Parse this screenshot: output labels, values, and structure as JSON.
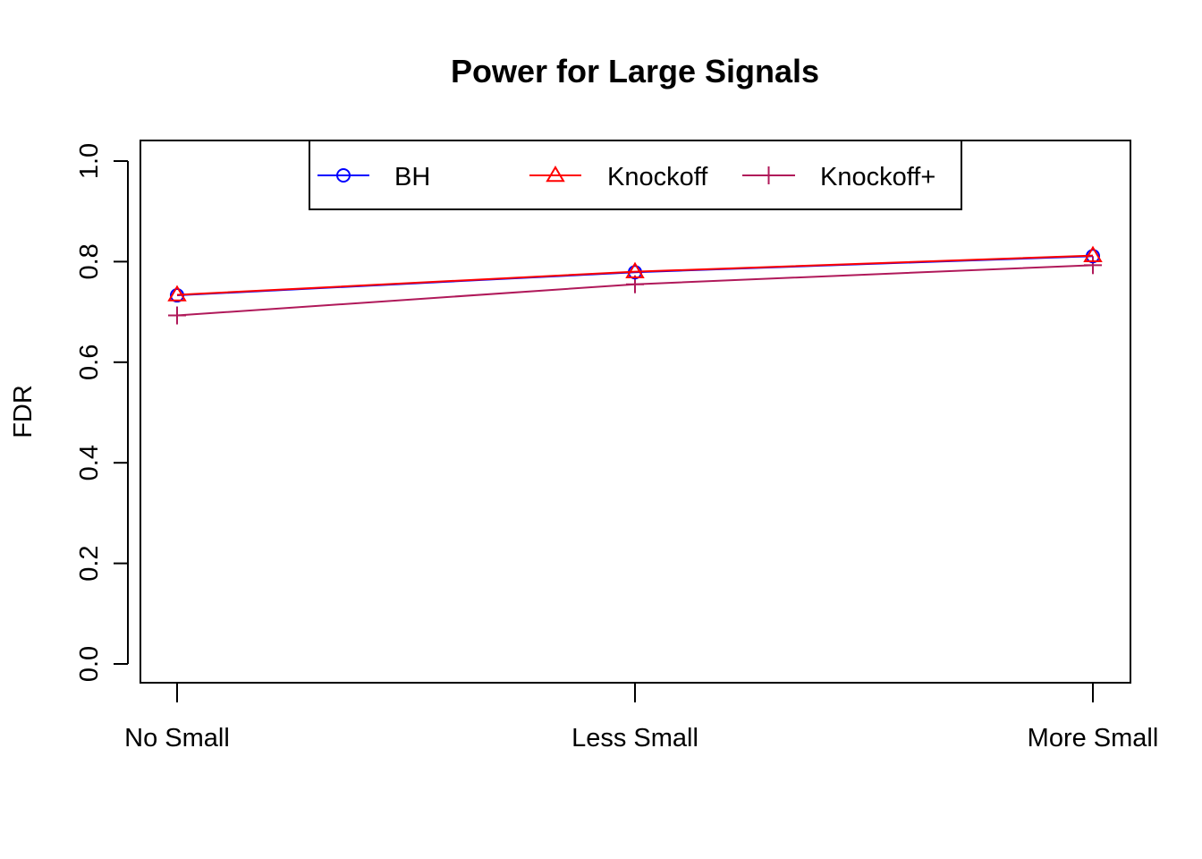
{
  "chart_data": {
    "type": "line",
    "title": "Power for Large Signals",
    "xlabel": "",
    "ylabel": "FDR",
    "categories": [
      "No Small",
      "Less Small",
      "More Small"
    ],
    "ylim": [
      0.0,
      1.0
    ],
    "yticks": [
      "0.0",
      "0.2",
      "0.4",
      "0.6",
      "0.8",
      "1.0"
    ],
    "grid": false,
    "legend_position": "top-center",
    "series": [
      {
        "name": "BH",
        "color": "#0000FF",
        "marker": "circle",
        "values": [
          0.733,
          0.779,
          0.811
        ]
      },
      {
        "name": "Knockoff",
        "color": "#FF0000",
        "marker": "triangle",
        "values": [
          0.734,
          0.78,
          0.812
        ]
      },
      {
        "name": "Knockoff+",
        "color": "#B0195A",
        "marker": "plus",
        "values": [
          0.693,
          0.755,
          0.793
        ]
      }
    ]
  }
}
